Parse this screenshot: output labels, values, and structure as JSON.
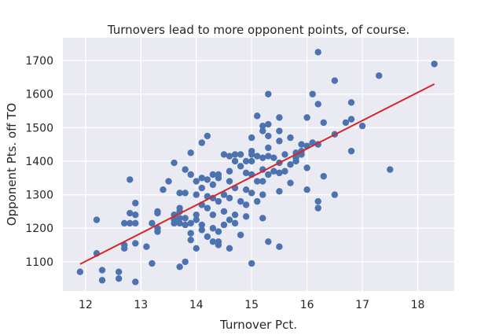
{
  "chart_data": {
    "type": "scatter",
    "title": "Turnovers lead to more opponent points, of course.",
    "xlabel": "Turnover Pct.",
    "ylabel": "Opponent Pts. off TO",
    "xlim": [
      11.59,
      18.66
    ],
    "ylim": [
      1013,
      1768
    ],
    "xticks": [
      12,
      13,
      14,
      15,
      16,
      17,
      18
    ],
    "yticks": [
      1100,
      1200,
      1300,
      1400,
      1500,
      1600,
      1700
    ],
    "grid": true,
    "colors": {
      "points": "#4c72b0",
      "fit_line": "#d62728",
      "background": "#eaeaf2",
      "grid": "#ffffff"
    },
    "fit_line": [
      [
        11.9,
        1093
      ],
      [
        18.3,
        1630
      ]
    ],
    "points": [
      [
        11.9,
        1070
      ],
      [
        12.2,
        1225
      ],
      [
        12.2,
        1125
      ],
      [
        12.3,
        1075
      ],
      [
        12.3,
        1045
      ],
      [
        12.6,
        1070
      ],
      [
        12.6,
        1050
      ],
      [
        12.7,
        1150
      ],
      [
        12.7,
        1140
      ],
      [
        12.7,
        1215
      ],
      [
        12.8,
        1345
      ],
      [
        12.8,
        1245
      ],
      [
        12.8,
        1215
      ],
      [
        12.9,
        1275
      ],
      [
        12.9,
        1240
      ],
      [
        12.9,
        1215
      ],
      [
        12.9,
        1155
      ],
      [
        12.9,
        1040
      ],
      [
        13.1,
        1145
      ],
      [
        13.2,
        1095
      ],
      [
        13.2,
        1215
      ],
      [
        13.3,
        1250
      ],
      [
        13.3,
        1245
      ],
      [
        13.3,
        1200
      ],
      [
        13.3,
        1190
      ],
      [
        13.4,
        1315
      ],
      [
        13.5,
        1340
      ],
      [
        13.6,
        1395
      ],
      [
        13.6,
        1215
      ],
      [
        13.6,
        1225
      ],
      [
        13.6,
        1240
      ],
      [
        13.7,
        1305
      ],
      [
        13.7,
        1260
      ],
      [
        13.7,
        1250
      ],
      [
        13.7,
        1230
      ],
      [
        13.7,
        1215
      ],
      [
        13.7,
        1085
      ],
      [
        13.8,
        1375
      ],
      [
        13.8,
        1305
      ],
      [
        13.8,
        1100
      ],
      [
        13.8,
        1210
      ],
      [
        13.8,
        1230
      ],
      [
        13.9,
        1425
      ],
      [
        13.9,
        1360
      ],
      [
        13.9,
        1215
      ],
      [
        13.9,
        1185
      ],
      [
        13.9,
        1165
      ],
      [
        14.0,
        1340
      ],
      [
        14.0,
        1300
      ],
      [
        14.0,
        1240
      ],
      [
        14.0,
        1225
      ],
      [
        14.0,
        1140
      ],
      [
        14.1,
        1455
      ],
      [
        14.1,
        1350
      ],
      [
        14.1,
        1320
      ],
      [
        14.1,
        1270
      ],
      [
        14.1,
        1210
      ],
      [
        14.1,
        1195
      ],
      [
        14.2,
        1475
      ],
      [
        14.2,
        1345
      ],
      [
        14.2,
        1295
      ],
      [
        14.2,
        1260
      ],
      [
        14.2,
        1175
      ],
      [
        14.3,
        1360
      ],
      [
        14.3,
        1330
      ],
      [
        14.3,
        1290
      ],
      [
        14.3,
        1240
      ],
      [
        14.3,
        1200
      ],
      [
        14.3,
        1160
      ],
      [
        14.4,
        1360
      ],
      [
        14.4,
        1350
      ],
      [
        14.4,
        1280
      ],
      [
        14.4,
        1190
      ],
      [
        14.4,
        1160
      ],
      [
        14.4,
        1150
      ],
      [
        14.5,
        1420
      ],
      [
        14.5,
        1300
      ],
      [
        14.5,
        1250
      ],
      [
        14.5,
        1210
      ],
      [
        14.6,
        1415
      ],
      [
        14.6,
        1370
      ],
      [
        14.6,
        1340
      ],
      [
        14.6,
        1290
      ],
      [
        14.6,
        1225
      ],
      [
        14.6,
        1140
      ],
      [
        14.7,
        1420
      ],
      [
        14.7,
        1400
      ],
      [
        14.7,
        1320
      ],
      [
        14.7,
        1240
      ],
      [
        14.7,
        1215
      ],
      [
        14.8,
        1420
      ],
      [
        14.8,
        1385
      ],
      [
        14.8,
        1280
      ],
      [
        14.8,
        1180
      ],
      [
        14.9,
        1400
      ],
      [
        14.9,
        1365
      ],
      [
        14.9,
        1315
      ],
      [
        14.9,
        1270
      ],
      [
        14.9,
        1235
      ],
      [
        15.0,
        1470
      ],
      [
        15.0,
        1430
      ],
      [
        15.0,
        1420
      ],
      [
        15.0,
        1400
      ],
      [
        15.0,
        1360
      ],
      [
        15.0,
        1305
      ],
      [
        15.0,
        1095
      ],
      [
        15.1,
        1535
      ],
      [
        15.1,
        1415
      ],
      [
        15.1,
        1340
      ],
      [
        15.1,
        1280
      ],
      [
        15.2,
        1505
      ],
      [
        15.2,
        1490
      ],
      [
        15.2,
        1410
      ],
      [
        15.2,
        1375
      ],
      [
        15.2,
        1340
      ],
      [
        15.2,
        1300
      ],
      [
        15.2,
        1230
      ],
      [
        15.3,
        1600
      ],
      [
        15.3,
        1510
      ],
      [
        15.3,
        1475
      ],
      [
        15.3,
        1440
      ],
      [
        15.3,
        1415
      ],
      [
        15.3,
        1360
      ],
      [
        15.3,
        1160
      ],
      [
        15.4,
        1410
      ],
      [
        15.4,
        1370
      ],
      [
        15.5,
        1530
      ],
      [
        15.5,
        1490
      ],
      [
        15.5,
        1460
      ],
      [
        15.5,
        1395
      ],
      [
        15.5,
        1365
      ],
      [
        15.5,
        1310
      ],
      [
        15.5,
        1145
      ],
      [
        15.6,
        1420
      ],
      [
        15.6,
        1370
      ],
      [
        15.7,
        1470
      ],
      [
        15.7,
        1390
      ],
      [
        15.7,
        1335
      ],
      [
        15.8,
        1425
      ],
      [
        15.8,
        1400
      ],
      [
        15.8,
        1410
      ],
      [
        15.9,
        1450
      ],
      [
        15.9,
        1430
      ],
      [
        15.9,
        1420
      ],
      [
        16.0,
        1530
      ],
      [
        16.0,
        1445
      ],
      [
        16.0,
        1380
      ],
      [
        16.0,
        1315
      ],
      [
        16.1,
        1600
      ],
      [
        16.1,
        1455
      ],
      [
        16.2,
        1725
      ],
      [
        16.2,
        1570
      ],
      [
        16.2,
        1450
      ],
      [
        16.2,
        1280
      ],
      [
        16.2,
        1260
      ],
      [
        16.3,
        1515
      ],
      [
        16.3,
        1355
      ],
      [
        16.5,
        1640
      ],
      [
        16.5,
        1480
      ],
      [
        16.5,
        1300
      ],
      [
        16.7,
        1515
      ],
      [
        16.8,
        1575
      ],
      [
        16.8,
        1525
      ],
      [
        16.8,
        1430
      ],
      [
        17.0,
        1505
      ],
      [
        17.3,
        1655
      ],
      [
        17.5,
        1375
      ],
      [
        18.3,
        1690
      ]
    ]
  }
}
